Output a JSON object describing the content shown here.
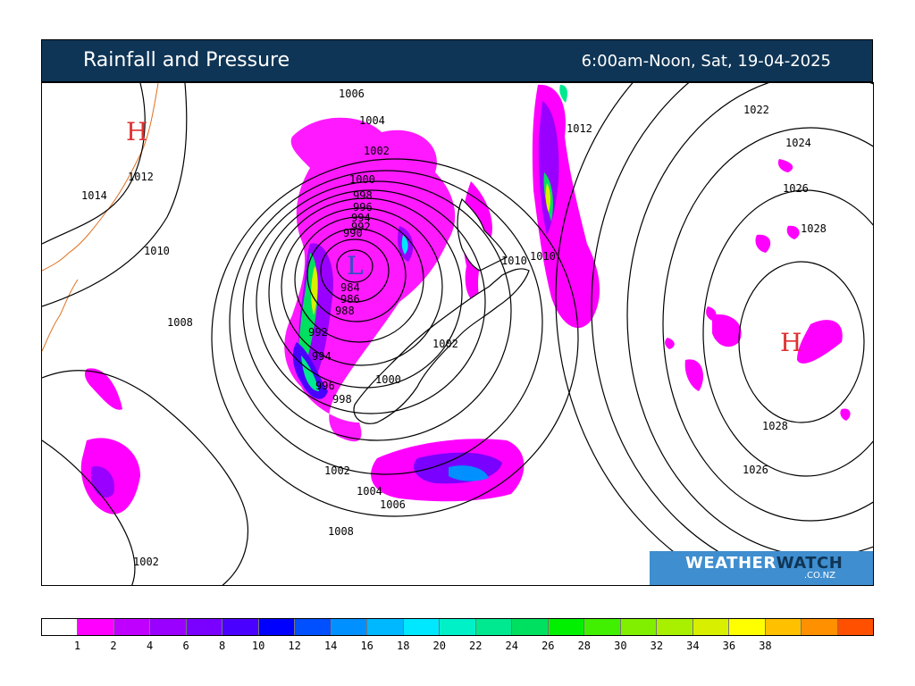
{
  "header": {
    "title": "Rainfall and Pressure",
    "subtitle": "6:00am-Noon, Sat, 19-04-2025"
  },
  "map": {
    "pressure_centres": [
      {
        "kind": "H",
        "color": "#e03030"
      },
      {
        "kind": "L",
        "color": "#3050c0"
      },
      {
        "kind": "H",
        "color": "#e03030"
      }
    ],
    "isobar_labels": [
      "1006",
      "1004",
      "1002",
      "1000",
      "998",
      "996",
      "994",
      "992",
      "990",
      "984",
      "986",
      "988",
      "992",
      "994",
      "996",
      "998",
      "1000",
      "1002",
      "1002",
      "1004",
      "1006",
      "1008",
      "1008",
      "1010",
      "1012",
      "1014",
      "1002",
      "1012",
      "1010",
      "1010",
      "1022",
      "1024",
      "1026",
      "1028",
      "1028",
      "1026"
    ]
  },
  "logo": {
    "brand_part1": "WEATHER",
    "brand_part2": "WATCH",
    "domain": ".CO.NZ"
  },
  "legend": {
    "colors": [
      "#ffffff",
      "#ff00ff",
      "#c000ff",
      "#9a00ff",
      "#7a00ff",
      "#4a00ff",
      "#0000ff",
      "#0050ff",
      "#0090ff",
      "#00b8ff",
      "#00e8ff",
      "#00f0c8",
      "#00e890",
      "#00e060",
      "#00f000",
      "#40f000",
      "#80f000",
      "#a8f000",
      "#d8f000",
      "#ffff00",
      "#ffc000",
      "#ff9000",
      "#ff5000"
    ],
    "ticks": [
      "1",
      "2",
      "4",
      "6",
      "8",
      "10",
      "12",
      "14",
      "16",
      "18",
      "20",
      "22",
      "24",
      "26",
      "28",
      "30",
      "32",
      "34",
      "36",
      "38"
    ]
  }
}
